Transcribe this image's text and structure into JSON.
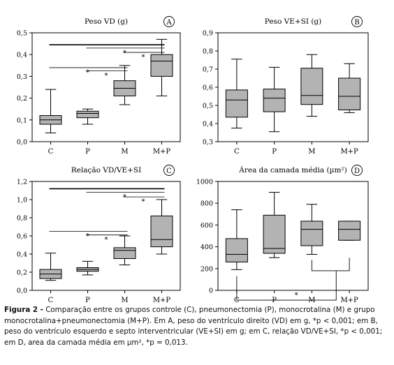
{
  "figure": {
    "box_fill": "#b3b3b3",
    "line_color": "#000000",
    "caption": {
      "label": "Figura 2 -",
      "text": "Comparação entre os grupos controle (C), pneumonectomia (P), monocrotalina (M) e grupo monocrotalina+pneumonectomia (M+P). Em A, peso do ventrículo direito (VD) em g, *p < 0,001; em B, peso do ventrículo esquerdo e septo interventricular (VE+SI) em g; em C, relação VD/VE+SI, *p < 0,001; em D, area da camada média em µm², *p = 0,013."
    }
  },
  "chart_data": [
    {
      "type": "boxplot",
      "panel": "A",
      "title": "Peso VD (g)",
      "categories": [
        "C",
        "P",
        "M",
        "M+P"
      ],
      "ylim": [
        0,
        0.5
      ],
      "yticks": [
        "0,0",
        "0,1",
        "0,2",
        "0,3",
        "0,4",
        "0,5"
      ],
      "boxes": [
        {
          "whisker_low": 0.04,
          "q1": 0.08,
          "median": 0.1,
          "q3": 0.12,
          "whisker_high": 0.24
        },
        {
          "whisker_low": 0.08,
          "q1": 0.11,
          "median": 0.13,
          "q3": 0.14,
          "whisker_high": 0.15
        },
        {
          "whisker_low": 0.17,
          "q1": 0.21,
          "median": 0.245,
          "q3": 0.28,
          "whisker_high": 0.35
        },
        {
          "whisker_low": 0.21,
          "q1": 0.3,
          "median": 0.37,
          "q3": 0.4,
          "whisker_high": 0.47
        }
      ],
      "significance": [
        {
          "from": 0,
          "to": 3,
          "y": 0.445,
          "label": "",
          "thick": true
        },
        {
          "from": 1,
          "to": 3,
          "y": 0.43,
          "label": "*",
          "thick": false
        },
        {
          "from": 2,
          "to": 3,
          "y": 0.41,
          "label": "*",
          "thick": false
        },
        {
          "from": 0,
          "to": 2,
          "y": 0.34,
          "label": "*",
          "thick": false
        },
        {
          "from": 1,
          "to": 2,
          "y": 0.325,
          "label": "*",
          "thick": false
        }
      ]
    },
    {
      "type": "boxplot",
      "panel": "B",
      "title": "Peso VE+SI (g)",
      "categories": [
        "C",
        "P",
        "M",
        "M+P"
      ],
      "ylim": [
        0.3,
        0.9
      ],
      "yticks": [
        "0,3",
        "0,4",
        "0,5",
        "0,6",
        "0,7",
        "0,8",
        "0,9"
      ],
      "boxes": [
        {
          "whisker_low": 0.375,
          "q1": 0.435,
          "median": 0.53,
          "q3": 0.585,
          "whisker_high": 0.755
        },
        {
          "whisker_low": 0.355,
          "q1": 0.465,
          "median": 0.54,
          "q3": 0.59,
          "whisker_high": 0.71
        },
        {
          "whisker_low": 0.44,
          "q1": 0.505,
          "median": 0.555,
          "q3": 0.705,
          "whisker_high": 0.78
        },
        {
          "whisker_low": 0.46,
          "q1": 0.475,
          "median": 0.55,
          "q3": 0.65,
          "whisker_high": 0.73
        }
      ],
      "significance": []
    },
    {
      "type": "boxplot",
      "panel": "C",
      "title": "Relação VD/VE+SI",
      "categories": [
        "C",
        "P",
        "M",
        "M+P"
      ],
      "ylim": [
        0,
        1.2
      ],
      "yticks": [
        "0,0",
        "0,2",
        "0,4",
        "0,6",
        "0,8",
        "1,0",
        "1,2"
      ],
      "boxes": [
        {
          "whisker_low": 0.11,
          "q1": 0.13,
          "median": 0.18,
          "q3": 0.23,
          "whisker_high": 0.41
        },
        {
          "whisker_low": 0.17,
          "q1": 0.21,
          "median": 0.23,
          "q3": 0.25,
          "whisker_high": 0.32
        },
        {
          "whisker_low": 0.28,
          "q1": 0.35,
          "median": 0.44,
          "q3": 0.47,
          "whisker_high": 0.6
        },
        {
          "whisker_low": 0.4,
          "q1": 0.48,
          "median": 0.56,
          "q3": 0.82,
          "whisker_high": 1.0
        }
      ],
      "significance": [
        {
          "from": 0,
          "to": 3,
          "y": 1.12,
          "label": "",
          "thick": true
        },
        {
          "from": 1,
          "to": 3,
          "y": 1.08,
          "label": "*",
          "thick": false
        },
        {
          "from": 2,
          "to": 3,
          "y": 1.03,
          "label": "*",
          "thick": false
        },
        {
          "from": 0,
          "to": 2,
          "y": 0.65,
          "label": "*",
          "thick": false
        },
        {
          "from": 1,
          "to": 2,
          "y": 0.61,
          "label": "*",
          "thick": false
        }
      ]
    },
    {
      "type": "boxplot",
      "panel": "D",
      "title": "Área da camada média (µm²)",
      "categories": [
        "C",
        "P",
        "M",
        "M+P"
      ],
      "ylim": [
        0,
        1000
      ],
      "yticks": [
        "0",
        "200",
        "400",
        "600",
        "800",
        "1000"
      ],
      "boxes": [
        {
          "whisker_low": 190,
          "q1": 260,
          "median": 330,
          "q3": 475,
          "whisker_high": 740
        },
        {
          "whisker_low": 300,
          "q1": 340,
          "median": 385,
          "q3": 690,
          "whisker_high": 900
        },
        {
          "whisker_low": 330,
          "q1": 410,
          "median": 560,
          "q3": 635,
          "whisker_high": 790
        },
        {
          "whisker_low": 460,
          "q1": 460,
          "median": 560,
          "q3": 635,
          "whisker_high": 635
        }
      ],
      "significance": [],
      "bracket": {
        "from": 0,
        "to_group": [
          2,
          3
        ],
        "label": "*"
      }
    }
  ]
}
